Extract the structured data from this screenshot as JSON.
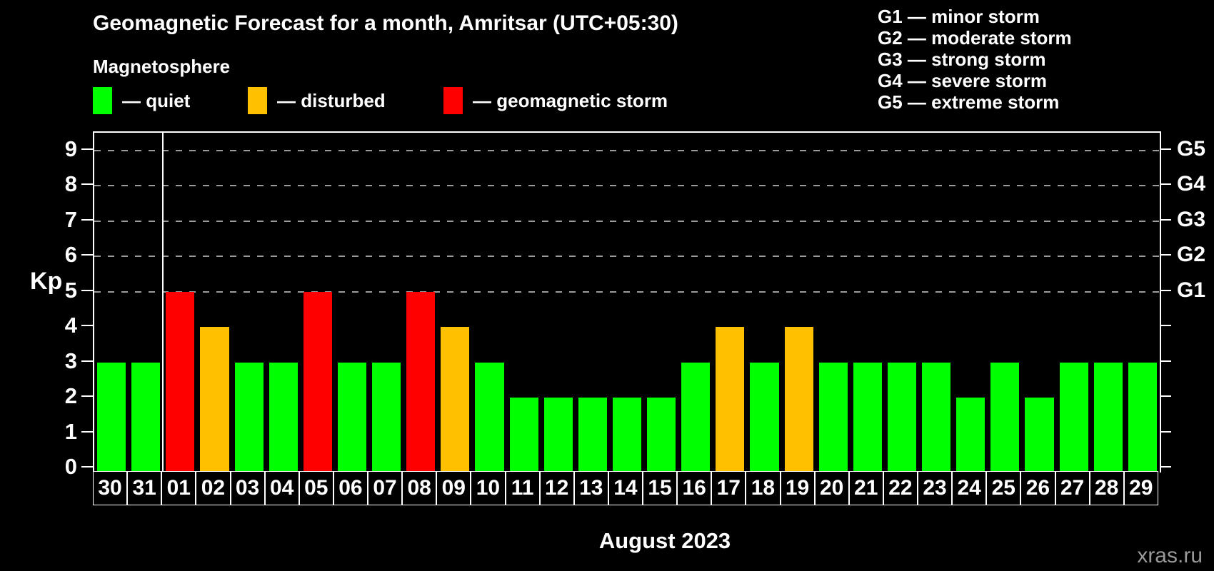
{
  "header": {
    "title": "Geomagnetic Forecast for a month, Amritsar (UTC+05:30)",
    "subtitle": "Magnetosphere"
  },
  "legend": {
    "items": [
      {
        "key": "quiet",
        "label": "— quiet",
        "color": "#00ff00"
      },
      {
        "key": "disturbed",
        "label": "— disturbed",
        "color": "#ffc000"
      },
      {
        "key": "storm",
        "label": "— geomagnetic storm",
        "color": "#ff0000"
      }
    ]
  },
  "g_scale_legend": {
    "items": [
      "G1 — minor storm",
      "G2 — moderate storm",
      "G3 — strong storm",
      "G4 — severe storm",
      "G5 — extreme storm"
    ]
  },
  "axes": {
    "y_left_label": "Kp",
    "y_left_ticks": [
      0,
      1,
      2,
      3,
      4,
      5,
      6,
      7,
      8,
      9
    ],
    "y_right_labels": [
      {
        "kp": 5,
        "label": "G1"
      },
      {
        "kp": 6,
        "label": "G2"
      },
      {
        "kp": 7,
        "label": "G3"
      },
      {
        "kp": 8,
        "label": "G4"
      },
      {
        "kp": 9,
        "label": "G5"
      }
    ],
    "x_title": "August 2023"
  },
  "watermark": "xras.ru",
  "chart_data": {
    "type": "bar",
    "title": "Geomagnetic Forecast for a month, Amritsar (UTC+05:30)",
    "xlabel": "August 2023",
    "ylabel": "Kp",
    "ylim": [
      0,
      9.6
    ],
    "grid": "dashed horizontal gridlines at Kp 5,6,7,8,9",
    "legend_position": "top-left",
    "categories": [
      "30",
      "31",
      "01",
      "02",
      "03",
      "04",
      "05",
      "06",
      "07",
      "08",
      "09",
      "10",
      "11",
      "12",
      "13",
      "14",
      "15",
      "16",
      "17",
      "18",
      "19",
      "20",
      "21",
      "22",
      "23",
      "24",
      "25",
      "26",
      "27",
      "28",
      "29"
    ],
    "values": [
      3,
      3,
      5,
      4,
      3,
      3,
      5,
      3,
      3,
      5,
      4,
      3,
      2,
      2,
      2,
      2,
      2,
      3,
      4,
      3,
      4,
      3,
      3,
      3,
      3,
      2,
      3,
      2,
      3,
      3,
      3
    ],
    "statuses": [
      "quiet",
      "quiet",
      "storm",
      "disturbed",
      "quiet",
      "quiet",
      "storm",
      "quiet",
      "quiet",
      "storm",
      "disturbed",
      "quiet",
      "quiet",
      "quiet",
      "quiet",
      "quiet",
      "quiet",
      "quiet",
      "disturbed",
      "quiet",
      "disturbed",
      "quiet",
      "quiet",
      "quiet",
      "quiet",
      "quiet",
      "quiet",
      "quiet",
      "quiet",
      "quiet",
      "quiet"
    ],
    "colors": {
      "quiet": "#00ff00",
      "disturbed": "#ffc000",
      "storm": "#ff0000"
    },
    "month_separator_after_index": 1
  }
}
